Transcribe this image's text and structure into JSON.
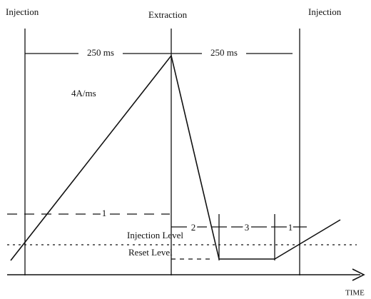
{
  "labels": {
    "left_top": "Injection",
    "middle_top": "Extraction",
    "right_top": "Injection",
    "period_1": "250 ms",
    "period_2": "250 ms",
    "slope": "4A/ms",
    "phase_left": "1",
    "phase_2": "2",
    "phase_3": "3",
    "phase_1_right": "1",
    "injection_level": "Injection Level",
    "reset_level": "Reset Level",
    "time_axis": "TIME"
  }
}
